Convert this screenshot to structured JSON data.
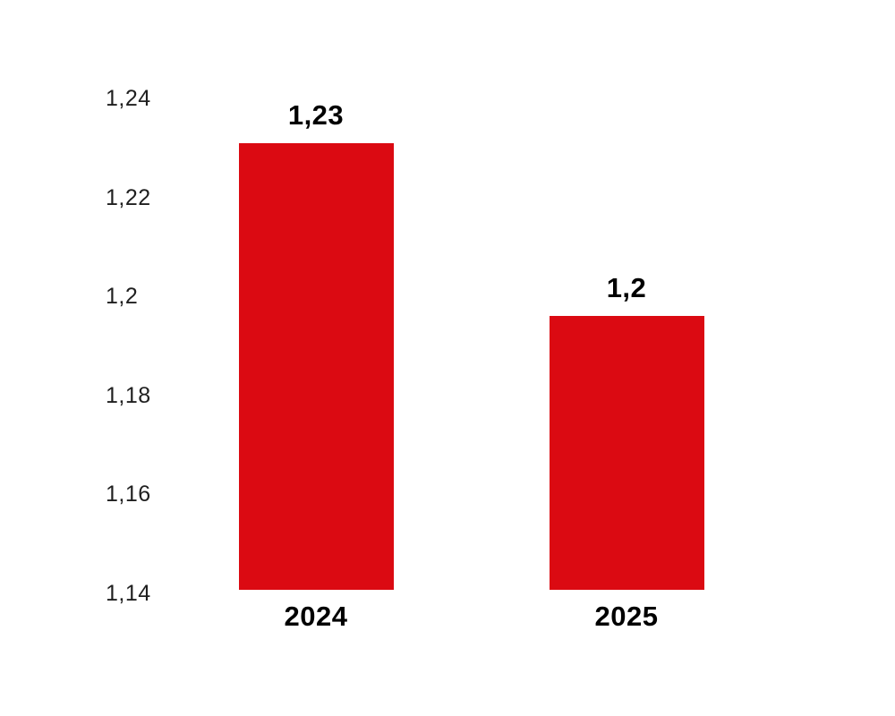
{
  "chart_data": {
    "type": "bar",
    "title": "",
    "categories": [
      "2024",
      "2025"
    ],
    "values": [
      1.23,
      1.2
    ],
    "value_labels": [
      "1,23",
      "1,2"
    ],
    "bar_top_values_estimated": [
      1.231,
      1.196
    ],
    "y_ticks": [
      {
        "value": 1.24,
        "label": "1,24"
      },
      {
        "value": 1.22,
        "label": "1,22"
      },
      {
        "value": 1.2,
        "label": "1,2"
      },
      {
        "value": 1.18,
        "label": "1,18"
      },
      {
        "value": 1.16,
        "label": "1,16"
      },
      {
        "value": 1.14,
        "label": "1,14"
      }
    ],
    "ylim": [
      1.14,
      1.24
    ],
    "xlabel": "",
    "ylabel": "",
    "decimal_separator": ",",
    "grid": false,
    "axis_lines": false,
    "legend_position": "none",
    "colors": {
      "bar": "#db0a12",
      "value_label": "#000000",
      "category_label": "#000000",
      "tick_label": "#1f1f1f",
      "background": "#ffffff"
    }
  }
}
